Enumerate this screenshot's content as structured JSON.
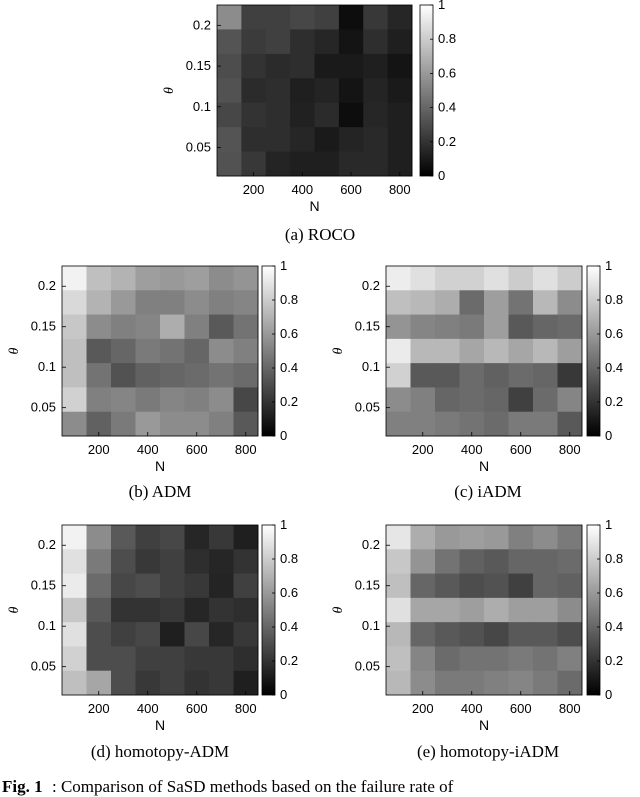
{
  "figure_caption": {
    "label": "Fig. 1",
    "text": ": Comparison of SaSD methods based on the failure rate of"
  },
  "chart_data": [
    {
      "type": "heatmap",
      "caption": "(a) ROCO",
      "xlabel": "N",
      "ylabel": "θ",
      "xticks": [
        "200",
        "400",
        "600",
        "800"
      ],
      "yticks": [
        "0.05",
        "0.1",
        "0.15",
        "0.2"
      ],
      "colorbar_ticks": [
        "0",
        "0.2",
        "0.4",
        "0.6",
        "0.8",
        "1"
      ],
      "clim": [
        0,
        1
      ],
      "colormap": "gray",
      "values": [
        [
          0.55,
          0.25,
          0.25,
          0.28,
          0.25,
          0.05,
          0.22,
          0.15
        ],
        [
          0.33,
          0.23,
          0.25,
          0.18,
          0.15,
          0.08,
          0.18,
          0.12
        ],
        [
          0.3,
          0.2,
          0.17,
          0.18,
          0.1,
          0.1,
          0.12,
          0.08
        ],
        [
          0.32,
          0.17,
          0.18,
          0.12,
          0.14,
          0.08,
          0.14,
          0.1
        ],
        [
          0.28,
          0.2,
          0.18,
          0.13,
          0.17,
          0.05,
          0.15,
          0.12
        ],
        [
          0.33,
          0.18,
          0.18,
          0.15,
          0.1,
          0.14,
          0.16,
          0.12
        ],
        [
          0.32,
          0.22,
          0.14,
          0.12,
          0.12,
          0.16,
          0.16,
          0.12
        ]
      ]
    },
    {
      "type": "heatmap",
      "caption": "(b) ADM",
      "xlabel": "N",
      "ylabel": "θ",
      "xticks": [
        "200",
        "400",
        "600",
        "800"
      ],
      "yticks": [
        "0.05",
        "0.1",
        "0.15",
        "0.2"
      ],
      "colorbar_ticks": [
        "0",
        "0.2",
        "0.4",
        "0.6",
        "0.8",
        "1"
      ],
      "clim": [
        0,
        1
      ],
      "colormap": "gray",
      "values": [
        [
          0.95,
          0.75,
          0.7,
          0.62,
          0.6,
          0.62,
          0.55,
          0.58
        ],
        [
          0.85,
          0.7,
          0.6,
          0.5,
          0.5,
          0.55,
          0.5,
          0.52
        ],
        [
          0.78,
          0.55,
          0.5,
          0.52,
          0.68,
          0.5,
          0.35,
          0.45
        ],
        [
          0.75,
          0.35,
          0.4,
          0.48,
          0.45,
          0.4,
          0.55,
          0.5
        ],
        [
          0.75,
          0.45,
          0.32,
          0.38,
          0.4,
          0.42,
          0.45,
          0.42
        ],
        [
          0.82,
          0.5,
          0.52,
          0.48,
          0.52,
          0.5,
          0.55,
          0.28
        ],
        [
          0.55,
          0.38,
          0.48,
          0.6,
          0.55,
          0.55,
          0.5,
          0.35
        ]
      ]
    },
    {
      "type": "heatmap",
      "caption": "(c) iADM",
      "xlabel": "N",
      "ylabel": "θ",
      "xticks": [
        "200",
        "400",
        "600",
        "800"
      ],
      "yticks": [
        "0.05",
        "0.1",
        "0.15",
        "0.2"
      ],
      "colorbar_ticks": [
        "0",
        "0.2",
        "0.4",
        "0.6",
        "0.8",
        "1"
      ],
      "clim": [
        0,
        1
      ],
      "colormap": "gray",
      "values": [
        [
          0.93,
          0.88,
          0.82,
          0.82,
          0.88,
          0.8,
          0.88,
          0.8
        ],
        [
          0.75,
          0.72,
          0.68,
          0.42,
          0.62,
          0.45,
          0.72,
          0.55
        ],
        [
          0.58,
          0.52,
          0.5,
          0.48,
          0.62,
          0.35,
          0.4,
          0.42
        ],
        [
          0.92,
          0.72,
          0.72,
          0.65,
          0.72,
          0.65,
          0.72,
          0.62
        ],
        [
          0.82,
          0.35,
          0.35,
          0.42,
          0.38,
          0.42,
          0.4,
          0.22
        ],
        [
          0.55,
          0.5,
          0.4,
          0.42,
          0.4,
          0.25,
          0.42,
          0.52
        ],
        [
          0.5,
          0.5,
          0.48,
          0.45,
          0.42,
          0.48,
          0.48,
          0.35
        ]
      ]
    },
    {
      "type": "heatmap",
      "caption": "(d) homotopy-ADM",
      "xlabel": "N",
      "ylabel": "θ",
      "xticks": [
        "200",
        "400",
        "600",
        "800"
      ],
      "yticks": [
        "0.05",
        "0.1",
        "0.15",
        "0.2"
      ],
      "colorbar_ticks": [
        "0",
        "0.2",
        "0.4",
        "0.6",
        "0.8",
        "1"
      ],
      "clim": [
        0,
        1
      ],
      "colormap": "gray",
      "values": [
        [
          0.95,
          0.55,
          0.35,
          0.25,
          0.28,
          0.15,
          0.22,
          0.12
        ],
        [
          0.88,
          0.48,
          0.3,
          0.22,
          0.25,
          0.18,
          0.15,
          0.2
        ],
        [
          0.92,
          0.42,
          0.28,
          0.3,
          0.25,
          0.22,
          0.14,
          0.25
        ],
        [
          0.78,
          0.35,
          0.2,
          0.2,
          0.22,
          0.15,
          0.2,
          0.18
        ],
        [
          0.88,
          0.3,
          0.25,
          0.28,
          0.12,
          0.28,
          0.15,
          0.22
        ],
        [
          0.82,
          0.3,
          0.3,
          0.25,
          0.25,
          0.22,
          0.22,
          0.18
        ],
        [
          0.75,
          0.65,
          0.3,
          0.22,
          0.25,
          0.2,
          0.22,
          0.12
        ]
      ]
    },
    {
      "type": "heatmap",
      "caption": "(e) homotopy-iADM",
      "xlabel": "N",
      "ylabel": "θ",
      "xticks": [
        "200",
        "400",
        "600",
        "800"
      ],
      "yticks": [
        "0.05",
        "0.1",
        "0.15",
        "0.2"
      ],
      "colorbar_ticks": [
        "0",
        "0.2",
        "0.4",
        "0.6",
        "0.8",
        "1"
      ],
      "clim": [
        0,
        1
      ],
      "colormap": "gray",
      "values": [
        [
          0.9,
          0.68,
          0.6,
          0.62,
          0.6,
          0.5,
          0.55,
          0.48
        ],
        [
          0.78,
          0.58,
          0.45,
          0.38,
          0.35,
          0.4,
          0.4,
          0.42
        ],
        [
          0.75,
          0.4,
          0.35,
          0.3,
          0.32,
          0.25,
          0.4,
          0.38
        ],
        [
          0.88,
          0.65,
          0.65,
          0.62,
          0.68,
          0.62,
          0.62,
          0.55
        ],
        [
          0.72,
          0.4,
          0.35,
          0.32,
          0.28,
          0.35,
          0.35,
          0.3
        ],
        [
          0.75,
          0.52,
          0.42,
          0.45,
          0.45,
          0.48,
          0.45,
          0.5
        ],
        [
          0.72,
          0.55,
          0.48,
          0.48,
          0.5,
          0.52,
          0.48,
          0.42
        ]
      ]
    }
  ]
}
